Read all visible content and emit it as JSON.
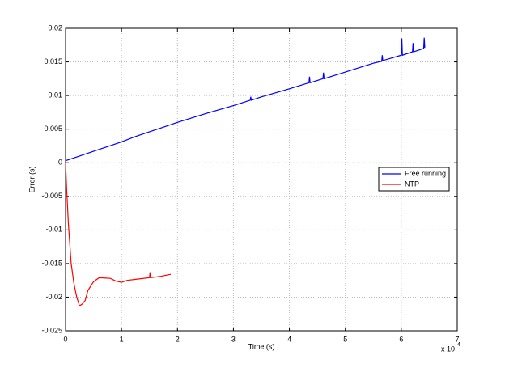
{
  "chart_data": {
    "type": "line",
    "xlabel": "Time (s)",
    "ylabel": "Error (s)",
    "x_multiplier": {
      "base": "x 10",
      "exponent": "4"
    },
    "xlim": [
      0,
      7
    ],
    "xticks": [
      0,
      1,
      2,
      3,
      4,
      5,
      6,
      7
    ],
    "ylim": [
      -0.025,
      0.02
    ],
    "yticks": [
      -0.025,
      -0.02,
      -0.015,
      -0.01,
      -0.005,
      0,
      0.005,
      0.01,
      0.015,
      0.02
    ],
    "grid": true,
    "legend": "right",
    "series": [
      {
        "name": "Free running",
        "color": "#0000ff",
        "x": [
          0,
          0.25,
          0.5,
          0.75,
          1,
          1.25,
          1.5,
          1.75,
          2,
          2.5,
          3,
          3.3,
          3.31,
          3.32,
          3.5,
          4,
          4.35,
          4.36,
          4.37,
          4.6,
          4.61,
          4.62,
          5,
          5.5,
          5.65,
          5.66,
          5.67,
          6,
          6.01,
          6.02,
          6.2,
          6.21,
          6.22,
          6.4,
          6.41,
          6.42
        ],
        "values": [
          0.0003,
          0.001,
          0.0017,
          0.0024,
          0.0031,
          0.0039,
          0.0046,
          0.0053,
          0.006,
          0.0073,
          0.0085,
          0.0093,
          0.0098,
          0.0093,
          0.0098,
          0.011,
          0.0119,
          0.0128,
          0.0119,
          0.0125,
          0.0134,
          0.0125,
          0.0135,
          0.0148,
          0.0151,
          0.016,
          0.0152,
          0.016,
          0.0185,
          0.016,
          0.0165,
          0.0178,
          0.0165,
          0.017,
          0.0186,
          0.0171
        ]
      },
      {
        "name": "NTP",
        "color": "#ff0000",
        "x": [
          0,
          0.02,
          0.05,
          0.1,
          0.15,
          0.2,
          0.25,
          0.3,
          0.35,
          0.4,
          0.5,
          0.6,
          0.8,
          0.9,
          1.0,
          1.1,
          1.3,
          1.5,
          1.51,
          1.52,
          1.7,
          1.88
        ],
        "values": [
          0,
          -0.004,
          -0.009,
          -0.015,
          -0.018,
          -0.02,
          -0.0213,
          -0.021,
          -0.0205,
          -0.019,
          -0.0177,
          -0.0171,
          -0.0172,
          -0.0176,
          -0.0178,
          -0.0175,
          -0.0173,
          -0.0171,
          -0.0163,
          -0.0171,
          -0.0169,
          -0.0166
        ]
      }
    ]
  }
}
